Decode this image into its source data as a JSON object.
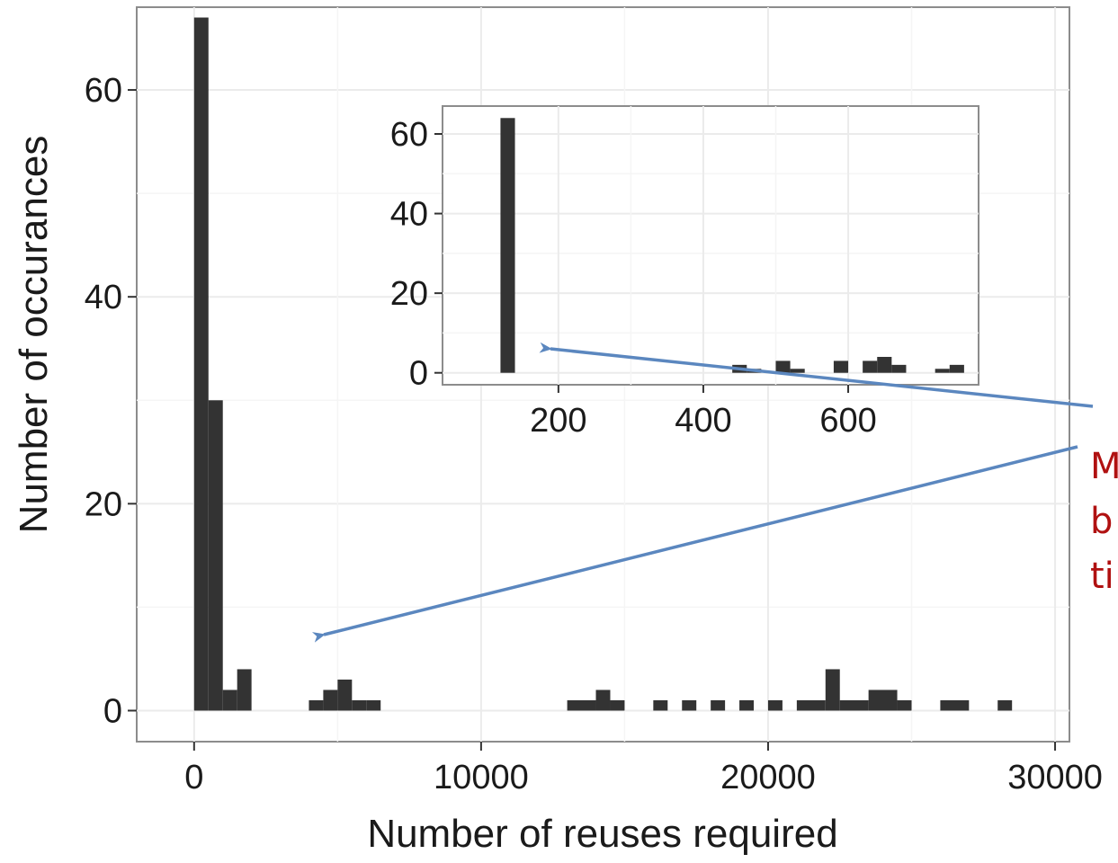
{
  "chart_data": [
    {
      "type": "bar",
      "role": "main-histogram",
      "title": "",
      "xlabel": "Number of reuses required",
      "ylabel": "Number of occurances",
      "xlim": [
        -2000,
        30500
      ],
      "ylim": [
        -3,
        68
      ],
      "x_ticks": [
        0,
        10000,
        20000,
        30000
      ],
      "x_tick_labels": [
        "0",
        "10000",
        "20000",
        "30000"
      ],
      "y_ticks": [
        0,
        20,
        40,
        60
      ],
      "y_tick_labels": [
        "0",
        "20",
        "40",
        "60"
      ],
      "grid": true,
      "bar_color": "#333333",
      "bins": [
        {
          "x0": 0,
          "x1": 500,
          "count": 67
        },
        {
          "x0": 500,
          "x1": 1000,
          "count": 30
        },
        {
          "x0": 1000,
          "x1": 1500,
          "count": 2
        },
        {
          "x0": 1500,
          "x1": 2000,
          "count": 4
        },
        {
          "x0": 4000,
          "x1": 4500,
          "count": 1
        },
        {
          "x0": 4500,
          "x1": 5000,
          "count": 2
        },
        {
          "x0": 5000,
          "x1": 5500,
          "count": 3
        },
        {
          "x0": 5500,
          "x1": 6000,
          "count": 1
        },
        {
          "x0": 6000,
          "x1": 6500,
          "count": 1
        },
        {
          "x0": 13000,
          "x1": 14000,
          "count": 1
        },
        {
          "x0": 14000,
          "x1": 14500,
          "count": 2
        },
        {
          "x0": 14500,
          "x1": 15000,
          "count": 1
        },
        {
          "x0": 16000,
          "x1": 16500,
          "count": 1
        },
        {
          "x0": 17000,
          "x1": 17500,
          "count": 1
        },
        {
          "x0": 18000,
          "x1": 18500,
          "count": 1
        },
        {
          "x0": 19000,
          "x1": 19500,
          "count": 1
        },
        {
          "x0": 20000,
          "x1": 20500,
          "count": 1
        },
        {
          "x0": 21000,
          "x1": 22000,
          "count": 1
        },
        {
          "x0": 22000,
          "x1": 22500,
          "count": 4
        },
        {
          "x0": 22500,
          "x1": 23500,
          "count": 1
        },
        {
          "x0": 23500,
          "x1": 24500,
          "count": 2
        },
        {
          "x0": 24500,
          "x1": 25000,
          "count": 1
        },
        {
          "x0": 26000,
          "x1": 27000,
          "count": 1
        },
        {
          "x0": 28000,
          "x1": 28500,
          "count": 1
        }
      ]
    },
    {
      "type": "bar",
      "role": "inset-histogram",
      "title": "",
      "xlabel": "",
      "ylabel": "",
      "xlim": [
        40,
        780
      ],
      "ylim": [
        -3,
        67
      ],
      "x_ticks": [
        200,
        400,
        600
      ],
      "x_tick_labels": [
        "200",
        "400",
        "600"
      ],
      "y_ticks": [
        0,
        20,
        40,
        60
      ],
      "y_tick_labels": [
        "0",
        "20",
        "40",
        "60"
      ],
      "grid": true,
      "bar_color": "#333333",
      "bins": [
        {
          "x0": 120,
          "x1": 140,
          "count": 64
        },
        {
          "x0": 440,
          "x1": 460,
          "count": 2
        },
        {
          "x0": 460,
          "x1": 480,
          "count": 1
        },
        {
          "x0": 500,
          "x1": 520,
          "count": 3
        },
        {
          "x0": 520,
          "x1": 540,
          "count": 1
        },
        {
          "x0": 580,
          "x1": 600,
          "count": 3
        },
        {
          "x0": 620,
          "x1": 640,
          "count": 3
        },
        {
          "x0": 640,
          "x1": 660,
          "count": 4
        },
        {
          "x0": 660,
          "x1": 680,
          "count": 2
        },
        {
          "x0": 720,
          "x1": 740,
          "count": 1
        },
        {
          "x0": 740,
          "x1": 760,
          "count": 2
        }
      ]
    }
  ],
  "annotation": {
    "lines": [
      "M",
      "b",
      "ti"
    ],
    "text_color": "#b01111",
    "arrow_color": "#5b87bf"
  }
}
